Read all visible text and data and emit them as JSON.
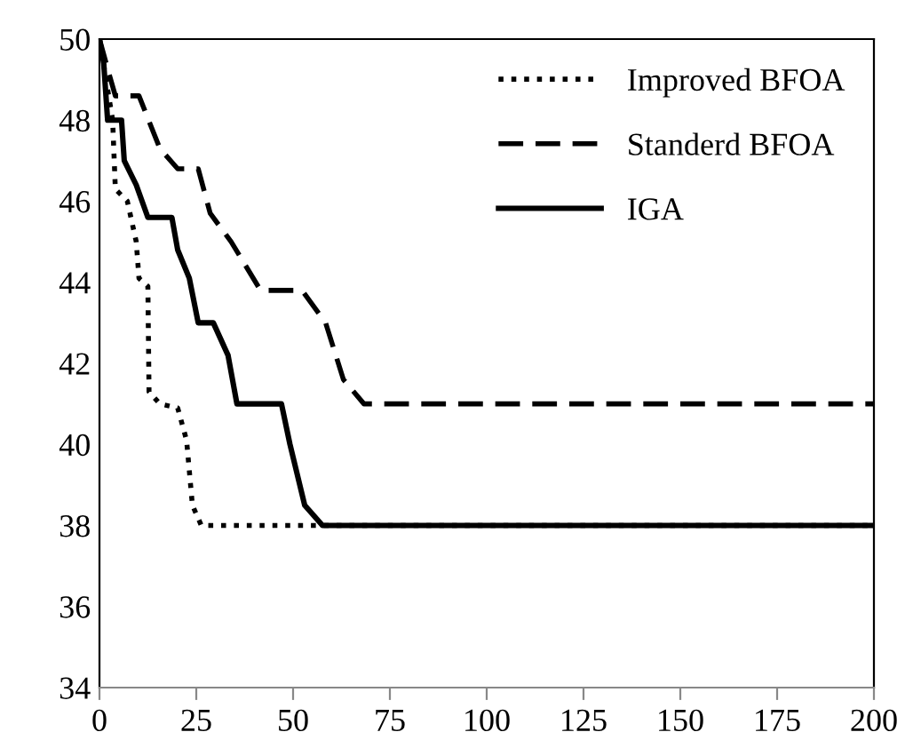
{
  "chart_data": {
    "type": "line",
    "xlim": [
      0,
      200
    ],
    "ylim": [
      34,
      50
    ],
    "xticks": [
      0,
      25,
      50,
      75,
      100,
      125,
      150,
      175,
      200
    ],
    "yticks": [
      34,
      36,
      38,
      40,
      42,
      44,
      46,
      48,
      50
    ],
    "grid": false,
    "legend": "top right",
    "marker": "none",
    "series": [
      {
        "name": "Improved BFOA",
        "color": "#000000",
        "line_style": "dotted",
        "x": [
          0,
          3.4,
          4.1,
          7.2,
          9.5,
          10.2,
          12.5,
          12.8,
          15.6,
          20.2,
          22.5,
          24,
          26.3,
          200
        ],
        "values": [
          50,
          48.0,
          46.3,
          46.0,
          45.0,
          44.1,
          43.9,
          41.3,
          41.0,
          40.9,
          40.1,
          38.5,
          38,
          38
        ]
      },
      {
        "name": "Standerd BFOA",
        "color": "#000000",
        "line_style": "dashed",
        "x": [
          0,
          2.6,
          4.1,
          10.2,
          15.6,
          20.2,
          25.5,
          28.6,
          34,
          41.6,
          52.3,
          58.4,
          63,
          68.3,
          200
        ],
        "values": [
          50,
          49.1,
          48.6,
          48.6,
          47.3,
          46.8,
          46.8,
          45.7,
          45.0,
          43.8,
          43.8,
          43.0,
          41.6,
          41.0,
          41.0
        ]
      },
      {
        "name": "IGA",
        "color": "#000000",
        "line_style": "solid",
        "x": [
          0,
          1.1,
          2.1,
          5.7,
          6.4,
          9.5,
          12.5,
          18.7,
          20.2,
          23.2,
          25.5,
          29.4,
          33.2,
          35.5,
          47,
          49.2,
          53,
          57.6,
          200
        ],
        "values": [
          50,
          49.4,
          48.0,
          48.0,
          47.0,
          46.4,
          45.6,
          45.6,
          44.8,
          44.1,
          43.0,
          43.0,
          42.2,
          41.0,
          41.0,
          40.0,
          38.5,
          38,
          38
        ]
      }
    ]
  }
}
